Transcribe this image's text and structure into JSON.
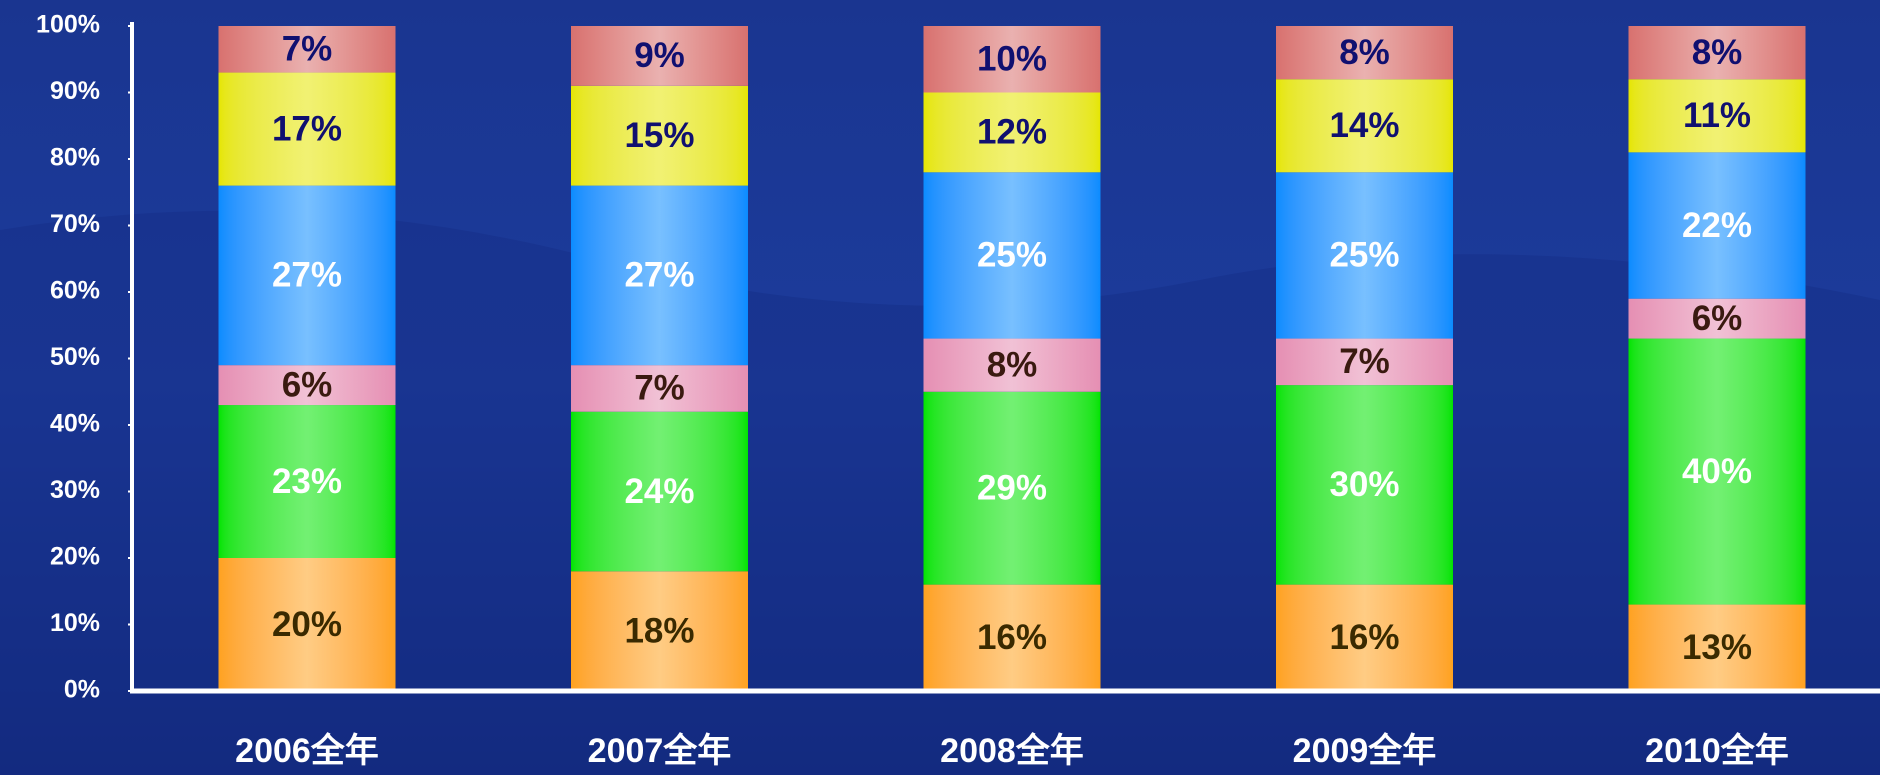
{
  "chart_data": {
    "type": "stacked_bar",
    "categories": [
      "2006全年",
      "2007全年",
      "2008全年",
      "2009全年",
      "2010全年"
    ],
    "series": [
      {
        "color": "#ffa21f",
        "values": [
          20,
          18,
          16,
          16,
          13
        ],
        "value_labels": [
          "20%",
          "18%",
          "16%",
          "16%",
          "13%"
        ]
      },
      {
        "color": "#00e400",
        "values": [
          23,
          24,
          29,
          30,
          40
        ],
        "value_labels": [
          "23%",
          "24%",
          "29%",
          "30%",
          "40%"
        ]
      },
      {
        "color": "#e58fb3",
        "values": [
          6,
          7,
          8,
          7,
          6
        ],
        "value_labels": [
          "6%",
          "7%",
          "8%",
          "7%",
          "6%"
        ]
      },
      {
        "color": "#0a8cff",
        "values": [
          27,
          27,
          25,
          25,
          22
        ],
        "value_labels": [
          "27%",
          "27%",
          "25%",
          "25%",
          "22%"
        ]
      },
      {
        "color": "#e6e600",
        "values": [
          17,
          15,
          12,
          14,
          11
        ],
        "value_labels": [
          "17%",
          "15%",
          "12%",
          "14%",
          "11%"
        ]
      },
      {
        "color": "#d8716f",
        "values": [
          7,
          9,
          10,
          8,
          8
        ],
        "value_labels": [
          "7%",
          "9%",
          "10%",
          "8%",
          "8%"
        ]
      }
    ],
    "ylim": [
      0,
      100
    ],
    "yticks": [
      {
        "value": 0,
        "label": "0%"
      },
      {
        "value": 10,
        "label": "10%"
      },
      {
        "value": 20,
        "label": "20%"
      },
      {
        "value": 30,
        "label": "30%"
      },
      {
        "value": 40,
        "label": "40%"
      },
      {
        "value": 50,
        "label": "50%"
      },
      {
        "value": 60,
        "label": "60%"
      },
      {
        "value": 70,
        "label": "70%"
      },
      {
        "value": 80,
        "label": "80%"
      },
      {
        "value": 90,
        "label": "90%"
      },
      {
        "value": 100,
        "label": "100%"
      }
    ]
  }
}
